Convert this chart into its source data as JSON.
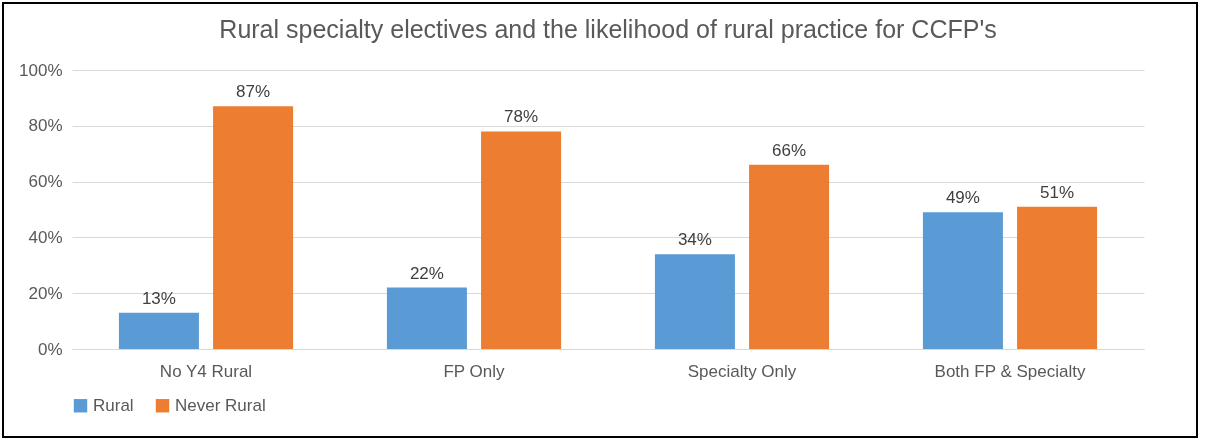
{
  "chart_data": {
    "type": "bar",
    "title": "Rural specialty electives and the likelihood of rural practice for CCFP's",
    "categories": [
      "No Y4 Rural",
      "FP Only",
      "Specialty Only",
      "Both FP & Specialty"
    ],
    "series": [
      {
        "name": "Rural",
        "color": "#5b9bd5",
        "values": [
          13,
          22,
          34,
          49
        ],
        "value_labels": [
          "13%",
          "22%",
          "34%",
          "49%"
        ]
      },
      {
        "name": "Never Rural",
        "color": "#ed7d31",
        "values": [
          87,
          78,
          66,
          51
        ],
        "value_labels": [
          "87%",
          "78%",
          "66%",
          "51%"
        ]
      }
    ],
    "ylim": [
      0,
      100
    ],
    "yticks": [
      {
        "value": 0,
        "label": "0%"
      },
      {
        "value": 20,
        "label": "20%"
      },
      {
        "value": 40,
        "label": "40%"
      },
      {
        "value": 60,
        "label": "60%"
      },
      {
        "value": 80,
        "label": "80%"
      },
      {
        "value": 100,
        "label": "100%"
      }
    ],
    "grid": "y",
    "legend": "bottom"
  }
}
